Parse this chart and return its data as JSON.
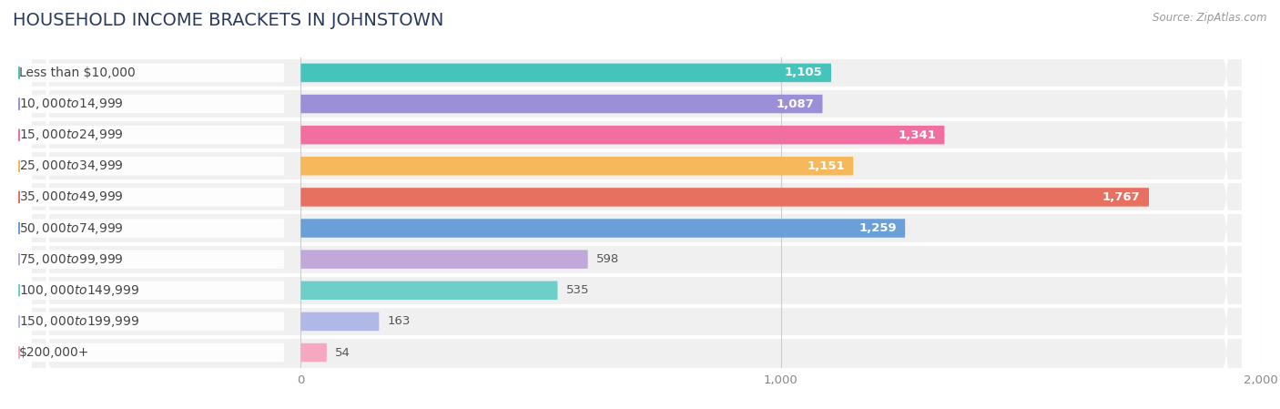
{
  "title": "HOUSEHOLD INCOME BRACKETS IN JOHNSTOWN",
  "source": "Source: ZipAtlas.com",
  "categories": [
    "Less than $10,000",
    "$10,000 to $14,999",
    "$15,000 to $24,999",
    "$25,000 to $34,999",
    "$35,000 to $49,999",
    "$50,000 to $74,999",
    "$75,000 to $99,999",
    "$100,000 to $149,999",
    "$150,000 to $199,999",
    "$200,000+"
  ],
  "values": [
    1105,
    1087,
    1341,
    1151,
    1767,
    1259,
    598,
    535,
    163,
    54
  ],
  "colors": [
    "#45C4BB",
    "#9B8FD8",
    "#F06FA0",
    "#F5B85A",
    "#E87060",
    "#6A9FD8",
    "#C0A8D8",
    "#6ECEC8",
    "#B0B8E8",
    "#F5A8C0"
  ],
  "xlim_left": -600,
  "xlim_right": 2000,
  "xticks": [
    0,
    1000,
    2000
  ],
  "background_color": "#ffffff",
  "row_bg_color": "#f0f0f0",
  "row_bg_color2": "#e8e8e8",
  "title_fontsize": 14,
  "label_fontsize": 10,
  "value_fontsize": 9.5,
  "title_color": "#2a3a5c",
  "source_color": "#999999"
}
